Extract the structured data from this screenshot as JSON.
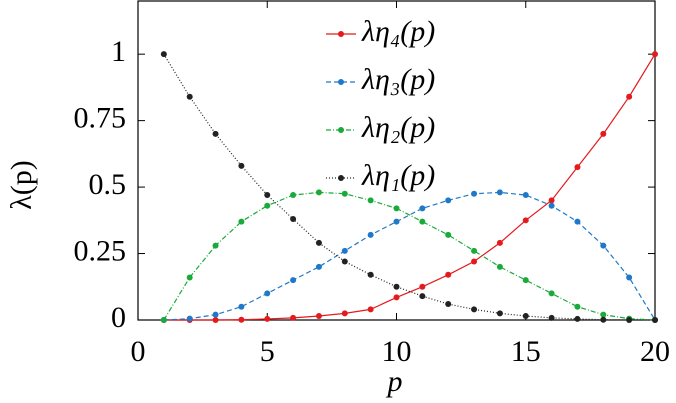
{
  "chart_data": {
    "type": "line",
    "x_label": "p",
    "y_label": "λ(p)",
    "x": [
      1,
      2,
      3,
      4,
      5,
      6,
      7,
      8,
      9,
      10,
      11,
      12,
      13,
      14,
      15,
      16,
      17,
      18,
      19,
      20
    ],
    "series": [
      {
        "name": "λη₄(p)",
        "color": "#e41a1c",
        "dash": "solid",
        "values": [
          0,
          0,
          0,
          0.001,
          0.004,
          0.008,
          0.015,
          0.025,
          0.04,
          0.085,
          0.125,
          0.17,
          0.22,
          0.29,
          0.375,
          0.45,
          0.575,
          0.7,
          0.84,
          1
        ]
      },
      {
        "name": "λη₃(p)",
        "color": "#1f78c8",
        "dash": "dashed",
        "values": [
          0,
          0.005,
          0.02,
          0.05,
          0.1,
          0.15,
          0.2,
          0.26,
          0.32,
          0.37,
          0.42,
          0.45,
          0.475,
          0.48,
          0.47,
          0.43,
          0.37,
          0.28,
          0.16,
          0
        ]
      },
      {
        "name": "λη₂(p)",
        "color": "#1aaa3a",
        "dash": "dashdot",
        "values": [
          0,
          0.16,
          0.28,
          0.37,
          0.43,
          0.47,
          0.48,
          0.475,
          0.45,
          0.42,
          0.37,
          0.32,
          0.26,
          0.2,
          0.15,
          0.1,
          0.05,
          0.02,
          0.005,
          0
        ]
      },
      {
        "name": "λη₁(p)",
        "color": "#222222",
        "dash": "dotted",
        "values": [
          1,
          0.84,
          0.7,
          0.58,
          0.47,
          0.38,
          0.29,
          0.22,
          0.17,
          0.125,
          0.09,
          0.06,
          0.04,
          0.025,
          0.015,
          0.008,
          0.004,
          0.001,
          0,
          0
        ]
      }
    ],
    "xlim": [
      0,
      20
    ],
    "xticks": [
      0,
      5,
      10,
      15,
      20
    ],
    "ylim": [
      0,
      1.2
    ],
    "yticks": [
      0,
      0.25,
      0.5,
      0.75,
      1
    ],
    "legend": "top"
  }
}
